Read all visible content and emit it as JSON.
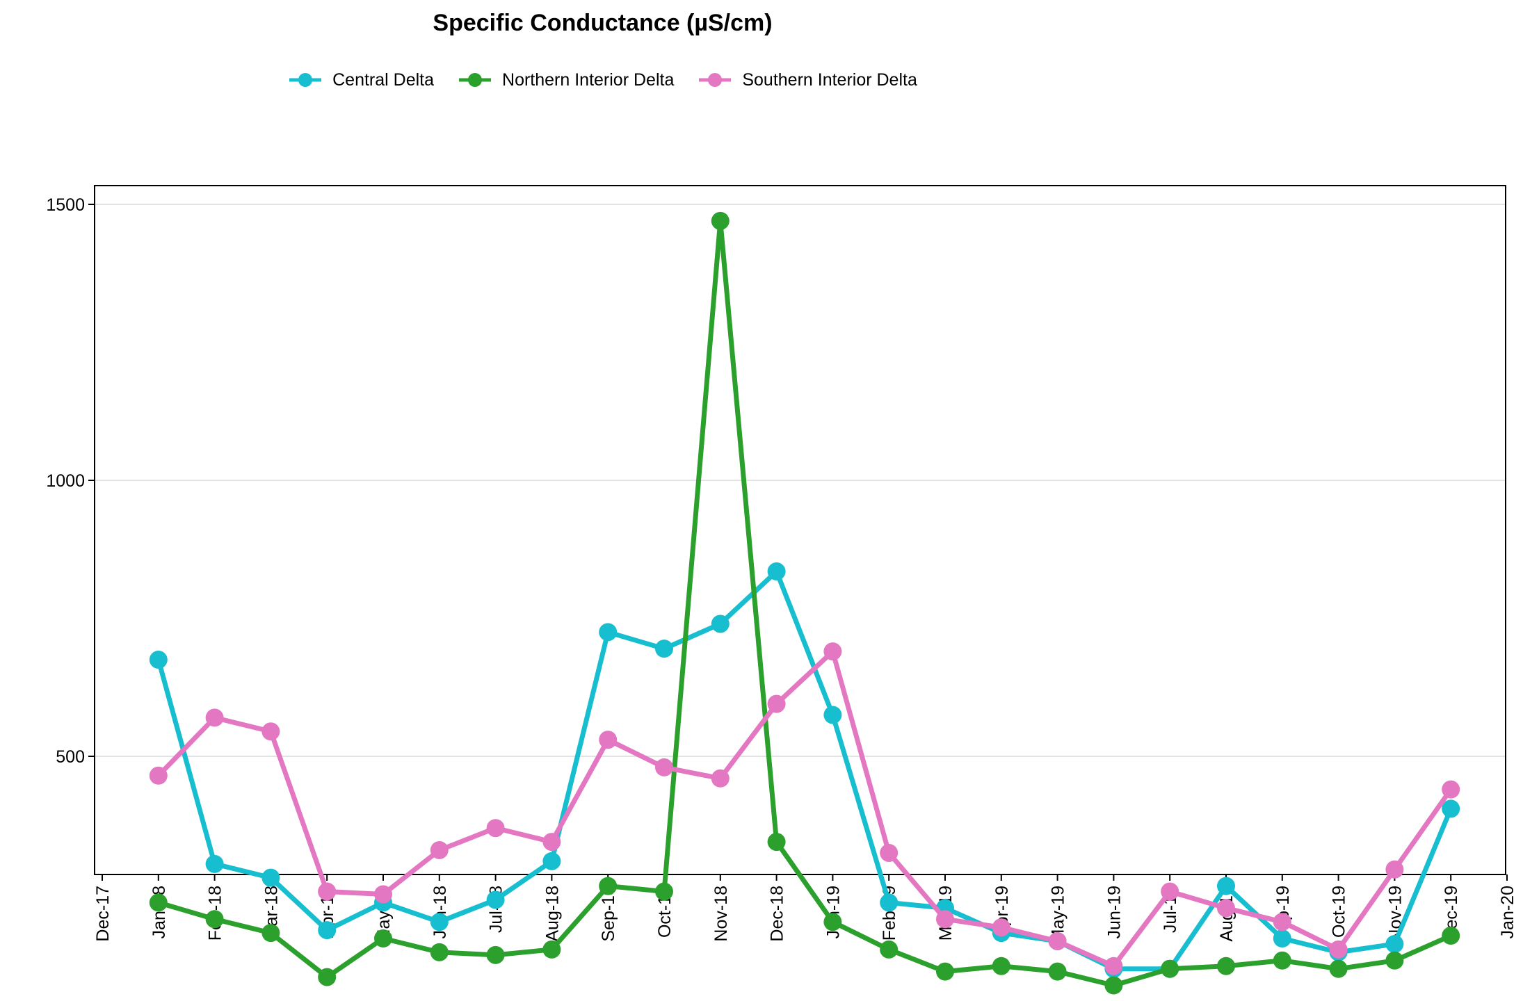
{
  "chart_data": {
    "type": "line",
    "title": "Specific Conductance (µS/cm)",
    "xlabel": "",
    "ylabel": "",
    "x_ticks": [
      "Dec-17",
      "Jan-18",
      "Feb-18",
      "Mar-18",
      "Apr-18",
      "May-18",
      "Jun-18",
      "Jul-18",
      "Aug-18",
      "Sep-18",
      "Oct-18",
      "Nov-18",
      "Dec-18",
      "Jan-19",
      "Feb-19",
      "Mar-19",
      "Apr-19",
      "May-19",
      "Jun-19",
      "Jul-19",
      "Aug-19",
      "Sep-19",
      "Oct-19",
      "Nov-19",
      "Dec-19",
      "Jan-20"
    ],
    "x": [
      "Jan-18",
      "Feb-18",
      "Mar-18",
      "Apr-18",
      "May-18",
      "Jun-18",
      "Jul-18",
      "Aug-18",
      "Sep-18",
      "Oct-18",
      "Nov-18",
      "Dec-18",
      "Jan-19",
      "Feb-19",
      "Mar-19",
      "Apr-19",
      "May-19",
      "Jun-19",
      "Jul-19",
      "Aug-19",
      "Sep-19",
      "Oct-19",
      "Nov-19",
      "Dec-19"
    ],
    "y_ticks": [
      500,
      1000,
      1500
    ],
    "ylim": [
      40,
      1500
    ],
    "grid": "horizontal",
    "legend_position": "top",
    "series": [
      {
        "name": "Central Delta",
        "color": "#17becf",
        "values": [
          675,
          305,
          280,
          185,
          235,
          200,
          240,
          310,
          725,
          695,
          740,
          835,
          575,
          235,
          225,
          180,
          165,
          115,
          115,
          265,
          170,
          145,
          160,
          405
        ]
      },
      {
        "name": "Northern Interior Delta",
        "color": "#2ca02c",
        "values": [
          235,
          205,
          180,
          100,
          170,
          145,
          140,
          150,
          265,
          255,
          1470,
          345,
          200,
          150,
          110,
          120,
          110,
          85,
          115,
          120,
          130,
          115,
          130,
          175
        ]
      },
      {
        "name": "Southern Interior Delta",
        "color": "#e377c2",
        "values": [
          465,
          570,
          545,
          255,
          250,
          330,
          370,
          345,
          530,
          480,
          460,
          595,
          690,
          325,
          205,
          190,
          165,
          120,
          255,
          225,
          200,
          150,
          295,
          440
        ]
      }
    ]
  }
}
